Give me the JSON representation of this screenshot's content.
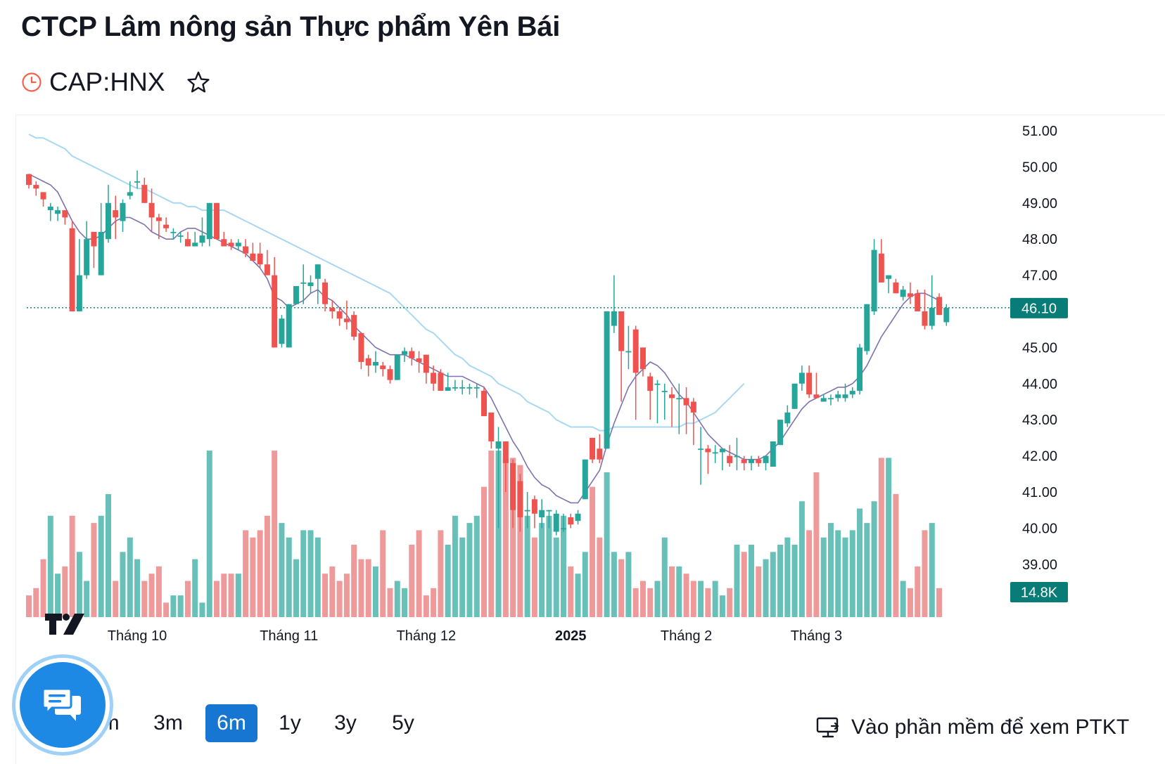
{
  "header": {
    "title": "CTCP Lâm nông sản Thực phẩm Yên Bái",
    "ticker": "CAP:HNX"
  },
  "ranges": {
    "items": [
      "1m",
      "3m",
      "6m",
      "1y",
      "3y",
      "5y"
    ],
    "active": "6m"
  },
  "pro_link": {
    "label": "Vào phần mềm để xem PTKT"
  },
  "colors": {
    "up": "#26a69a",
    "down": "#ef5350",
    "up_volume": "#26a69a",
    "down_volume": "#ef9a9a",
    "ma_short": "#7e72b0",
    "ma_long": "#a8d8f2",
    "last_price": "#087d78",
    "chat_button": "#1e88e5"
  },
  "icons": {
    "status": "clock-icon",
    "favorite": "star-icon",
    "chat": "chat-bubbles-icon",
    "software": "monitor-icon",
    "brand": "tradingview-logo"
  },
  "chart_data": {
    "type": "candlestick",
    "ylim": [
      38.0,
      51.2
    ],
    "y_ticks": [
      "51.00",
      "50.00",
      "49.00",
      "48.00",
      "47.00",
      "46.00",
      "45.00",
      "44.00",
      "43.00",
      "42.00",
      "41.00",
      "40.00",
      "39.00"
    ],
    "x_tick_labels": [
      {
        "label": "Tháng 10",
        "index": 15,
        "bold": false
      },
      {
        "label": "Tháng 11",
        "index": 36,
        "bold": false
      },
      {
        "label": "Tháng 12",
        "index": 55,
        "bold": false
      },
      {
        "label": "2025",
        "index": 75,
        "bold": true
      },
      {
        "label": "Tháng 2",
        "index": 91,
        "bold": false
      },
      {
        "label": "Tháng 3",
        "index": 109,
        "bold": false
      }
    ],
    "last_price": "46.10",
    "last_volume": "14.8K",
    "series": [
      {
        "name": "price",
        "ohlc": [
          [
            49.8,
            49.8,
            49.4,
            49.5
          ],
          [
            49.5,
            49.6,
            49.2,
            49.4
          ],
          [
            49.3,
            49.3,
            48.9,
            49.1
          ],
          [
            48.8,
            49.0,
            48.5,
            48.9
          ],
          [
            48.7,
            48.9,
            48.5,
            48.8
          ],
          [
            48.8,
            48.8,
            48.4,
            48.6
          ],
          [
            48.3,
            48.5,
            46.0,
            46.0
          ],
          [
            46.0,
            48.0,
            46.0,
            47.0
          ],
          [
            47.0,
            48.5,
            46.9,
            48.0
          ],
          [
            48.2,
            48.2,
            47.2,
            47.8
          ],
          [
            47.0,
            49.0,
            47.0,
            48.2
          ],
          [
            48.0,
            49.5,
            47.9,
            49.0
          ],
          [
            48.8,
            49.2,
            48.0,
            48.6
          ],
          [
            48.5,
            49.1,
            48.2,
            49.0
          ],
          [
            49.2,
            49.6,
            49.1,
            49.3
          ],
          [
            49.6,
            49.9,
            49.4,
            49.6
          ],
          [
            49.5,
            49.7,
            49.0,
            49.0
          ],
          [
            49.0,
            49.4,
            48.2,
            48.6
          ],
          [
            48.6,
            48.7,
            48.0,
            48.5
          ],
          [
            48.4,
            48.6,
            48.2,
            48.3
          ],
          [
            48.2,
            48.3,
            48.0,
            48.2
          ],
          [
            48.1,
            48.2,
            47.9,
            48.1
          ],
          [
            48.0,
            48.2,
            47.8,
            47.8
          ],
          [
            47.8,
            48.2,
            47.8,
            47.9
          ],
          [
            47.9,
            48.6,
            47.8,
            48.1
          ],
          [
            48.0,
            49.0,
            47.8,
            49.0
          ],
          [
            49.0,
            49.0,
            48.0,
            48.0
          ],
          [
            48.0,
            48.2,
            47.8,
            47.8
          ],
          [
            47.9,
            48.0,
            47.7,
            47.8
          ],
          [
            47.8,
            48.0,
            47.7,
            47.9
          ],
          [
            47.8,
            48.0,
            47.5,
            47.6
          ],
          [
            47.6,
            47.9,
            47.4,
            47.4
          ],
          [
            47.6,
            47.9,
            47.2,
            47.3
          ],
          [
            47.3,
            47.7,
            47.0,
            47.0
          ],
          [
            47.0,
            47.5,
            45.0,
            45.0
          ],
          [
            45.1,
            45.9,
            45.0,
            45.8
          ],
          [
            45.0,
            46.2,
            45.0,
            46.2
          ],
          [
            46.2,
            46.7,
            46.2,
            46.7
          ],
          [
            46.8,
            47.3,
            46.2,
            46.8
          ],
          [
            46.7,
            47.0,
            46.5,
            46.8
          ],
          [
            46.9,
            47.3,
            46.2,
            47.3
          ],
          [
            46.8,
            46.9,
            46.0,
            46.2
          ],
          [
            46.1,
            46.3,
            45.8,
            46.0
          ],
          [
            46.0,
            46.1,
            45.6,
            45.8
          ],
          [
            45.8,
            46.3,
            45.5,
            45.7
          ],
          [
            45.9,
            46.0,
            45.2,
            45.3
          ],
          [
            45.4,
            45.4,
            44.4,
            44.6
          ],
          [
            44.7,
            44.8,
            44.2,
            44.5
          ],
          [
            44.5,
            44.9,
            44.3,
            44.6
          ],
          [
            44.5,
            44.6,
            44.2,
            44.4
          ],
          [
            44.4,
            44.5,
            44.0,
            44.1
          ],
          [
            44.1,
            44.8,
            44.1,
            44.8
          ],
          [
            44.8,
            45.0,
            44.6,
            44.9
          ],
          [
            44.9,
            45.0,
            44.5,
            44.7
          ],
          [
            44.7,
            44.9,
            44.3,
            44.6
          ],
          [
            44.8,
            44.8,
            44.0,
            44.3
          ],
          [
            44.3,
            44.5,
            43.8,
            44.0
          ],
          [
            44.3,
            44.4,
            43.8,
            43.8
          ],
          [
            43.8,
            44.3,
            43.8,
            43.9
          ],
          [
            43.9,
            44.1,
            43.8,
            43.9
          ],
          [
            43.9,
            44.1,
            43.7,
            43.9
          ],
          [
            43.9,
            44.0,
            43.7,
            43.9
          ],
          [
            43.9,
            44.0,
            43.6,
            43.9
          ],
          [
            43.8,
            43.9,
            43.1,
            43.1
          ],
          [
            43.2,
            43.2,
            42.2,
            42.4
          ],
          [
            42.2,
            42.8,
            40.0,
            42.4
          ],
          [
            42.4,
            42.4,
            41.0,
            41.8
          ],
          [
            41.8,
            41.9,
            40.0,
            40.5
          ],
          [
            41.3,
            41.5,
            39.9,
            40.3
          ],
          [
            40.5,
            41.0,
            40.0,
            40.5
          ],
          [
            40.8,
            40.9,
            40.0,
            40.4
          ],
          [
            40.3,
            40.8,
            40.0,
            40.5
          ],
          [
            40.5,
            40.5,
            40.0,
            40.5
          ],
          [
            39.9,
            40.5,
            39.8,
            40.4
          ],
          [
            40.0,
            40.4,
            39.9,
            40.0
          ],
          [
            40.3,
            40.4,
            40.0,
            40.1
          ],
          [
            40.2,
            40.5,
            40.1,
            40.4
          ],
          [
            40.8,
            41.9,
            40.8,
            41.9
          ],
          [
            42.5,
            42.5,
            41.8,
            41.9
          ],
          [
            42.2,
            42.6,
            41.8,
            41.9
          ],
          [
            42.2,
            46.0,
            42.2,
            46.0
          ],
          [
            45.6,
            47.0,
            45.4,
            46.0
          ],
          [
            46.0,
            46.0,
            43.5,
            44.9
          ],
          [
            44.9,
            45.6,
            44.4,
            44.9
          ],
          [
            45.5,
            45.6,
            43.0,
            44.3
          ],
          [
            45.0,
            45.0,
            44.2,
            44.4
          ],
          [
            44.2,
            44.3,
            43.0,
            43.8
          ],
          [
            44.0,
            44.1,
            42.9,
            44.0
          ],
          [
            43.8,
            44.0,
            43.0,
            43.8
          ],
          [
            43.7,
            43.9,
            42.8,
            43.6
          ],
          [
            43.6,
            44.0,
            42.6,
            43.6
          ],
          [
            43.6,
            43.9,
            42.6,
            43.4
          ],
          [
            43.5,
            43.6,
            42.3,
            43.2
          ],
          [
            42.2,
            42.8,
            41.2,
            42.2
          ],
          [
            42.2,
            42.3,
            41.5,
            42.1
          ],
          [
            42.1,
            42.3,
            41.8,
            42.1
          ],
          [
            42.1,
            42.2,
            41.6,
            42.2
          ],
          [
            42.0,
            42.3,
            41.7,
            41.8
          ],
          [
            42.0,
            42.5,
            41.6,
            42.0
          ],
          [
            41.9,
            42.0,
            41.6,
            41.8
          ],
          [
            41.8,
            42.0,
            41.6,
            41.9
          ],
          [
            41.9,
            42.0,
            41.7,
            41.8
          ],
          [
            41.8,
            42.0,
            41.6,
            42.0
          ],
          [
            41.7,
            42.4,
            41.7,
            42.4
          ],
          [
            42.3,
            43.0,
            42.3,
            43.0
          ],
          [
            42.9,
            43.4,
            42.8,
            43.2
          ],
          [
            43.3,
            44.0,
            43.3,
            44.0
          ],
          [
            44.0,
            44.5,
            43.8,
            44.3
          ],
          [
            44.3,
            44.5,
            43.6,
            43.7
          ],
          [
            43.7,
            44.3,
            43.6,
            43.6
          ],
          [
            43.5,
            43.7,
            43.5,
            43.6
          ],
          [
            43.6,
            43.7,
            43.4,
            43.6
          ],
          [
            43.6,
            43.8,
            43.5,
            43.7
          ],
          [
            43.6,
            44.0,
            43.5,
            43.7
          ],
          [
            43.7,
            43.9,
            43.6,
            43.8
          ],
          [
            43.8,
            45.1,
            43.7,
            45.0
          ],
          [
            44.9,
            46.2,
            44.8,
            46.2
          ],
          [
            46.0,
            48.0,
            45.9,
            47.7
          ],
          [
            47.6,
            48.0,
            46.8,
            46.8
          ],
          [
            46.9,
            47.0,
            46.5,
            47.0
          ],
          [
            46.8,
            46.9,
            46.5,
            46.5
          ],
          [
            46.4,
            46.7,
            46.3,
            46.6
          ],
          [
            46.5,
            46.8,
            46.2,
            46.4
          ],
          [
            46.5,
            46.6,
            46.0,
            46.0
          ],
          [
            46.0,
            46.6,
            45.5,
            45.6
          ],
          [
            45.6,
            47.0,
            45.5,
            46.1
          ],
          [
            46.4,
            46.5,
            45.9,
            45.9
          ],
          [
            45.7,
            46.2,
            45.6,
            46.1
          ]
        ]
      },
      {
        "name": "volume",
        "values": [
          3,
          4,
          8,
          14,
          6,
          7,
          14,
          9,
          5,
          13,
          14,
          17,
          5,
          9,
          11,
          8,
          5,
          6,
          7,
          2,
          3,
          3,
          5,
          8,
          2,
          23,
          5,
          6,
          6,
          6,
          12,
          11,
          12,
          14,
          23,
          13,
          11,
          8,
          12,
          12,
          11,
          6,
          7,
          5,
          6,
          10,
          8,
          8,
          7,
          12,
          4,
          5,
          4,
          10,
          12,
          3,
          4,
          12,
          10,
          14,
          11,
          13,
          14,
          18,
          23,
          23,
          22,
          22,
          21,
          14,
          11,
          13,
          14,
          11,
          14,
          7,
          6,
          9,
          18,
          11,
          20,
          9,
          8,
          9,
          4,
          5,
          4,
          5,
          11,
          7,
          7,
          6,
          5,
          5,
          4,
          5,
          3,
          4,
          10,
          9,
          10,
          7,
          8,
          9,
          10,
          11,
          10,
          16,
          12,
          20,
          11,
          13,
          12,
          11,
          12,
          15,
          13,
          16,
          22,
          22,
          17,
          5,
          4,
          7,
          12,
          13,
          4
        ]
      },
      {
        "name": "ma_short",
        "values": [
          49.8,
          49.7,
          49.6,
          49.5,
          49.3,
          48.9,
          48.5,
          48.2,
          48.0,
          48.0,
          48.1,
          48.3,
          48.5,
          48.6,
          48.6,
          48.5,
          48.4,
          48.2,
          48.1,
          48.0,
          48.0,
          48.2,
          48.3,
          48.3,
          48.2,
          48.1,
          48.0,
          47.9,
          47.8,
          47.7,
          47.6,
          47.4,
          47.2,
          46.9,
          46.4,
          46.3,
          46.1,
          46.2,
          46.3,
          46.5,
          46.6,
          46.4,
          46.3,
          46.1,
          45.9,
          45.6,
          45.4,
          45.2,
          45.0,
          44.9,
          44.8,
          44.8,
          44.8,
          44.7,
          44.6,
          44.5,
          44.4,
          44.3,
          44.2,
          44.2,
          44.2,
          44.1,
          44.0,
          43.9,
          43.6,
          43.2,
          42.8,
          42.4,
          42.1,
          41.7,
          41.4,
          41.2,
          41.1,
          40.9,
          40.8,
          40.7,
          40.7,
          41.0,
          41.3,
          41.6,
          42.3,
          42.9,
          43.4,
          43.9,
          44.2,
          44.4,
          44.6,
          44.5,
          44.3,
          44.0,
          43.7,
          43.5,
          43.2,
          42.9,
          42.6,
          42.4,
          42.2,
          42.1,
          42.0,
          41.9,
          41.9,
          41.9,
          42.0,
          42.2,
          42.4,
          42.7,
          43.0,
          43.3,
          43.5,
          43.6,
          43.7,
          43.8,
          43.9,
          43.9,
          44.0,
          44.2,
          44.5,
          44.9,
          45.3,
          45.6,
          45.9,
          46.2,
          46.4,
          46.5,
          46.5,
          46.4,
          46.3
        ]
      },
      {
        "name": "ma_long",
        "values": [
          50.9,
          50.8,
          50.8,
          50.7,
          50.6,
          50.5,
          50.3,
          50.2,
          50.1,
          50.0,
          49.9,
          49.8,
          49.7,
          49.6,
          49.5,
          49.4,
          49.4,
          49.3,
          49.2,
          49.1,
          49.0,
          49.0,
          48.9,
          48.9,
          48.8,
          48.8,
          48.8,
          48.8,
          48.7,
          48.6,
          48.5,
          48.4,
          48.3,
          48.2,
          48.1,
          48.0,
          47.9,
          47.8,
          47.7,
          47.6,
          47.5,
          47.4,
          47.3,
          47.2,
          47.1,
          47.0,
          46.9,
          46.8,
          46.7,
          46.6,
          46.5,
          46.3,
          46.1,
          45.9,
          45.7,
          45.5,
          45.4,
          45.2,
          45.0,
          44.8,
          44.7,
          44.5,
          44.4,
          44.3,
          44.2,
          44.0,
          43.9,
          43.8,
          43.7,
          43.5,
          43.4,
          43.3,
          43.2,
          43.0,
          42.9,
          42.8,
          42.8,
          42.8,
          42.8,
          42.7,
          42.7,
          42.8,
          42.8,
          42.8,
          42.8,
          42.8,
          42.8,
          42.8,
          42.8,
          42.8,
          42.8,
          42.9,
          42.9,
          43.0,
          43.1,
          43.2,
          43.4,
          43.6,
          43.8,
          44.0
        ]
      }
    ]
  }
}
